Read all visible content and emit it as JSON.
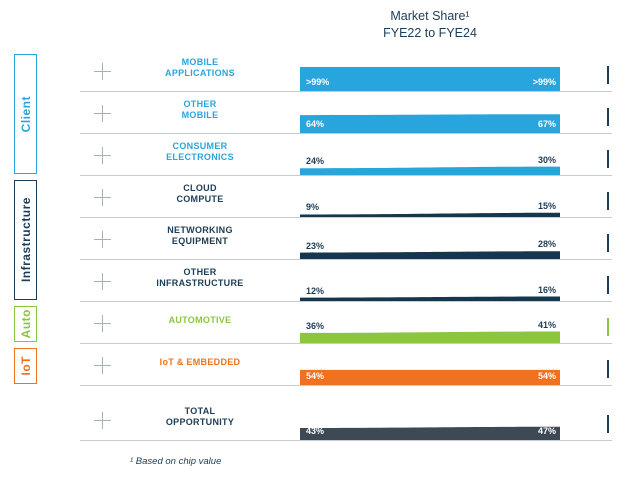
{
  "title": {
    "line1": "Market Share¹",
    "line2": "FYE22 to FYE24"
  },
  "footnote": "¹ Based on chip value",
  "colors": {
    "baseline": "#c6ccd1",
    "plus_marker": "#a7b1b8",
    "title_text": "#1d3c55",
    "blue": "#29a5dd",
    "navy": "#16364d",
    "green": "#8cc640",
    "orange": "#f07120",
    "slate": "#3d4a55"
  },
  "groups": [
    {
      "label": "Client",
      "color": "#29a5dd",
      "row_start": 1,
      "row_end": 3
    },
    {
      "label": "Infrastructure",
      "color": "#1d3c55",
      "row_start": 4,
      "row_end": 6
    },
    {
      "label": "Auto",
      "color": "#8cc640",
      "row_start": 7,
      "row_end": 7
    },
    {
      "label": "IoT",
      "color": "#f07120",
      "row_start": 8,
      "row_end": 8
    }
  ],
  "chart_data": {
    "type": "area",
    "title": "Market Share¹",
    "subtitle": "FYE22 to FYE24",
    "x": [
      "FYE22",
      "FYE24"
    ],
    "unit": "% market share",
    "ylim": [
      0,
      100
    ],
    "footnote": "¹ Based on chip value",
    "rows": [
      {
        "label": "MOBILE APPLICATIONS",
        "label_lines": [
          "MOBILE",
          "APPLICATIONS"
        ],
        "group": "Client",
        "fye22_label": ">99%",
        "fye24_label": ">99%",
        "fye22": 99.5,
        "fye24": 99.5,
        "color": "#29a5dd",
        "label_color": "#29a5dd",
        "value_label_color": "#ffffff",
        "tick_color": "#1d3c55"
      },
      {
        "label": "OTHER MOBILE",
        "label_lines": [
          "OTHER",
          "MOBILE"
        ],
        "group": "Client",
        "fye22_label": "64%",
        "fye24_label": "67%",
        "fye22": 64,
        "fye24": 67,
        "color": "#29a5dd",
        "label_color": "#29a5dd",
        "value_label_color": "#ffffff",
        "tick_color": "#1d3c55"
      },
      {
        "label": "CONSUMER ELECTRONICS",
        "label_lines": [
          "CONSUMER",
          "ELECTRONICS"
        ],
        "group": "Client",
        "fye22_label": "24%",
        "fye24_label": "30%",
        "fye22": 24,
        "fye24": 30,
        "color": "#29a5dd",
        "label_color": "#29a5dd",
        "value_label_color": "#1d3c55",
        "tick_color": "#1d3c55"
      },
      {
        "label": "CLOUD COMPUTE",
        "label_lines": [
          "CLOUD",
          "COMPUTE"
        ],
        "group": "Infrastructure",
        "fye22_label": "9%",
        "fye24_label": "15%",
        "fye22": 9,
        "fye24": 15,
        "color": "#16364d",
        "label_color": "#1d3c55",
        "value_label_color": "#1d3c55",
        "tick_color": "#1d3c55"
      },
      {
        "label": "NETWORKING EQUIPMENT",
        "label_lines": [
          "NETWORKING",
          "EQUIPMENT"
        ],
        "group": "Infrastructure",
        "fye22_label": "23%",
        "fye24_label": "28%",
        "fye22": 23,
        "fye24": 28,
        "color": "#16364d",
        "label_color": "#1d3c55",
        "value_label_color": "#1d3c55",
        "tick_color": "#1d3c55"
      },
      {
        "label": "OTHER INFRASTRUCTURE",
        "label_lines": [
          "OTHER",
          "INFRASTRUCTURE"
        ],
        "group": "Infrastructure",
        "fye22_label": "12%",
        "fye24_label": "16%",
        "fye22": 12,
        "fye24": 16,
        "color": "#16364d",
        "label_color": "#1d3c55",
        "value_label_color": "#1d3c55",
        "tick_color": "#1d3c55"
      },
      {
        "label": "AUTOMOTIVE",
        "label_lines": [
          "AUTOMOTIVE"
        ],
        "group": "Auto",
        "fye22_label": "36%",
        "fye24_label": "41%",
        "fye22": 36,
        "fye24": 41,
        "color": "#8cc640",
        "label_color": "#8cc640",
        "value_label_color": "#1d3c55",
        "tick_color": "#8cc640"
      },
      {
        "label": "IoT & EMBEDDED",
        "label_lines": [
          "IoT & EMBEDDED"
        ],
        "group": "IoT",
        "fye22_label": "54%",
        "fye24_label": "54%",
        "fye22": 54,
        "fye24": 54,
        "color": "#f07120",
        "label_color": "#f07120",
        "value_label_color": "#ffffff",
        "tick_color": "#1d3c55"
      },
      {
        "label": "TOTAL OPPORTUNITY",
        "label_lines": [
          "TOTAL",
          "OPPORTUNITY"
        ],
        "group": "",
        "fye22_label": "43%",
        "fye24_label": "47%",
        "fye22": 43,
        "fye24": 47,
        "color": "#3d4a55",
        "label_color": "#1d3c55",
        "value_label_color": "#ffffff",
        "tick_color": "#1d3c55"
      }
    ]
  }
}
